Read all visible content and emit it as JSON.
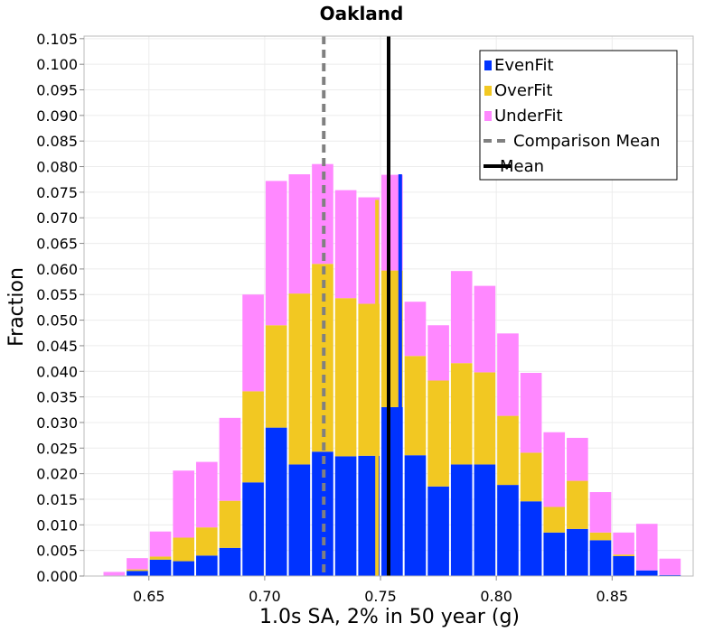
{
  "chart_data": {
    "type": "bar",
    "stacked": true,
    "title": "Oakland",
    "xlabel": "1.0s SA, 2% in 50 year (g)",
    "ylabel": "Fraction",
    "xlim": [
      0.622,
      0.885
    ],
    "ylim": [
      0.0,
      0.1055
    ],
    "bin_width": 0.01,
    "grid": true,
    "legend_position": "top-right",
    "x_ticks": [
      0.65,
      0.7,
      0.75,
      0.8,
      0.85
    ],
    "x_tick_labels": [
      "0.65",
      "0.70",
      "0.75",
      "0.80",
      "0.85"
    ],
    "y_ticks": [
      0.0,
      0.005,
      0.01,
      0.015,
      0.02,
      0.025,
      0.03,
      0.035,
      0.04,
      0.045,
      0.05,
      0.055,
      0.06,
      0.065,
      0.07,
      0.075,
      0.08,
      0.085,
      0.09,
      0.095,
      0.1,
      0.105
    ],
    "y_tick_labels": [
      "0.000",
      "0.005",
      "0.010",
      "0.015",
      "0.020",
      "0.025",
      "0.030",
      "0.035",
      "0.040",
      "0.045",
      "0.050",
      "0.055",
      "0.060",
      "0.065",
      "0.070",
      "0.075",
      "0.080",
      "0.085",
      "0.090",
      "0.095",
      "0.100",
      "0.105"
    ],
    "x": [
      0.635,
      0.645,
      0.655,
      0.665,
      0.675,
      0.685,
      0.695,
      0.705,
      0.715,
      0.725,
      0.735,
      0.745,
      0.755,
      0.765,
      0.775,
      0.785,
      0.795,
      0.805,
      0.815,
      0.825,
      0.835,
      0.845,
      0.855,
      0.865,
      0.875
    ],
    "series": [
      {
        "name": "EvenFit",
        "color": "#0033ff",
        "values": [
          0.0001,
          0.001,
          0.0032,
          0.0029,
          0.004,
          0.0055,
          0.0183,
          0.029,
          0.0218,
          0.0243,
          0.0234,
          0.0235,
          0.033,
          0.0236,
          0.0175,
          0.0218,
          0.0218,
          0.0178,
          0.0146,
          0.0085,
          0.0092,
          0.007,
          0.0039,
          0.0011,
          0.0002
        ]
      },
      {
        "name": "OverFit",
        "color": "#f2c822",
        "values": [
          0.0,
          0.0003,
          0.0006,
          0.0046,
          0.0055,
          0.0092,
          0.0178,
          0.02,
          0.0334,
          0.0367,
          0.0309,
          0.0297,
          0.0267,
          0.0194,
          0.0207,
          0.0198,
          0.018,
          0.0135,
          0.0095,
          0.005,
          0.0094,
          0.0015,
          0.0003,
          0.0,
          0.0
        ]
      },
      {
        "name": "UnderFit",
        "color": "#ff88ff",
        "values": [
          0.0007,
          0.0022,
          0.0049,
          0.0131,
          0.0128,
          0.0162,
          0.0189,
          0.0282,
          0.0233,
          0.0195,
          0.0211,
          0.0208,
          0.0187,
          0.0106,
          0.0108,
          0.018,
          0.0169,
          0.0161,
          0.0156,
          0.0146,
          0.0084,
          0.0079,
          0.0043,
          0.0091,
          0.0032
        ]
      }
    ],
    "vertical_lines": [
      {
        "name": "Comparison Mean",
        "x": 0.7255,
        "color": "#808080",
        "style": "dashed"
      },
      {
        "name": "Mean",
        "x": 0.7535,
        "color": "#000000",
        "style": "solid"
      },
      {
        "series": "OverFit",
        "x": 0.7485,
        "color": "#f2c822",
        "style": "solid",
        "y_top": 0.0735
      },
      {
        "series": "EvenFit",
        "x": 0.7585,
        "color": "#0033ff",
        "style": "solid",
        "y_top": 0.0785
      }
    ],
    "legend": [
      {
        "label": "EvenFit",
        "kind": "patch",
        "color": "#0033ff"
      },
      {
        "label": "OverFit",
        "kind": "patch",
        "color": "#f2c822"
      },
      {
        "label": "UnderFit",
        "kind": "patch",
        "color": "#ff88ff"
      },
      {
        "label": "Comparison Mean",
        "kind": "dashed",
        "color": "#808080"
      },
      {
        "label": "Mean",
        "kind": "solid",
        "color": "#000000"
      }
    ]
  }
}
